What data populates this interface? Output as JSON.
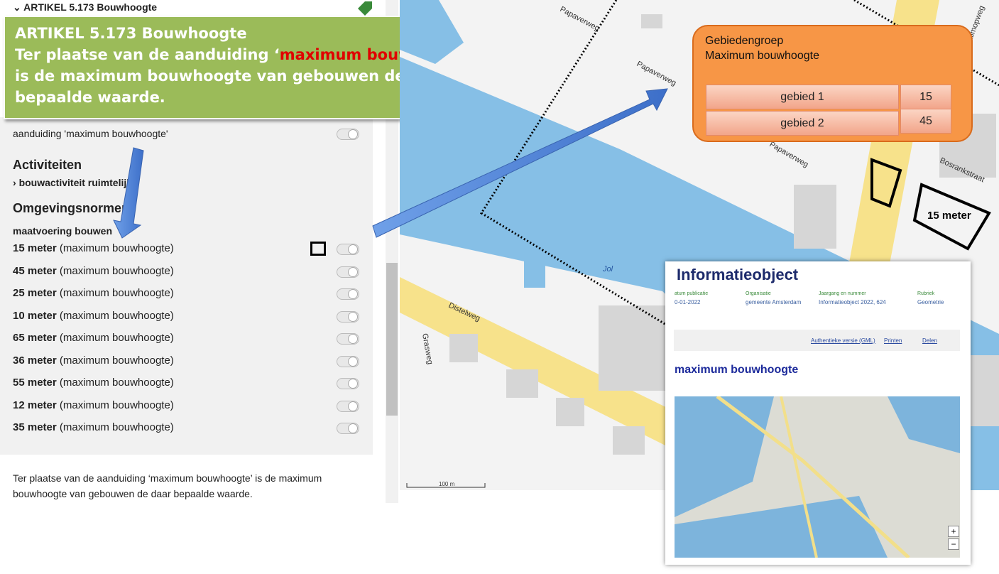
{
  "header": {
    "title": "ARTIKEL 5.173 Bouwhoogte"
  },
  "callout": {
    "title": "ARTIKEL 5.173 Bouwhoogte",
    "text_before": "Ter plaatse van de aanduiding ‘",
    "highlight": "maximum bouwhoogte",
    "text_after": "’ is de maximum bouwhoogte van gebouwen de daar bepaalde waarde."
  },
  "panel": {
    "toggle_label": "aanduiding 'maximum bouwhoogte'",
    "activities_heading": "Activiteiten",
    "activity": "bouwactiviteit ruimtelijk",
    "norms_heading": "Omgevingsnormen",
    "norms_subheading": "maatvoering bouwen",
    "norms": [
      {
        "value": "15 meter",
        "label": "(maximum bouwhoogte)"
      },
      {
        "value": "45 meter",
        "label": "(maximum bouwhoogte)"
      },
      {
        "value": "25 meter",
        "label": "(maximum bouwhoogte)"
      },
      {
        "value": "10 meter",
        "label": "(maximum bouwhoogte)"
      },
      {
        "value": "65 meter",
        "label": "(maximum bouwhoogte)"
      },
      {
        "value": "36 meter",
        "label": "(maximum bouwhoogte)"
      },
      {
        "value": "55 meter",
        "label": "(maximum bouwhoogte)"
      },
      {
        "value": "12 meter",
        "label": "(maximum bouwhoogte)"
      },
      {
        "value": "35 meter",
        "label": "(maximum bouwhoogte)"
      }
    ],
    "description": "Ter plaatse van de aanduiding ‘maximum bouwhoogte’ is de maximum bouwhoogte van gebouwen de daar bepaalde waarde."
  },
  "map": {
    "streets": [
      "Papaverweg",
      "Papaverweg",
      "Papaverweg",
      "Distelweg",
      "Grasweg",
      "Bosrankstraat",
      "Klimopweg",
      "Jol"
    ],
    "area_label": "15 meter",
    "scale": "100 m"
  },
  "legend": {
    "title": "Gebiedengroep",
    "subtitle": "Maximum bouwhoogte",
    "rows": [
      [
        "gebied 1",
        "15"
      ],
      [
        "gebied 2",
        "45"
      ]
    ]
  },
  "info": {
    "title": "Informatieobject",
    "meta": [
      [
        "atum publicatie",
        "0-01-2022"
      ],
      [
        "Organisatie",
        "gemeente Amsterdam"
      ],
      [
        "Jaargang en nummer",
        "Informatieobject 2022, 624"
      ],
      [
        "Rubriek",
        "Geometrie"
      ]
    ],
    "actions": [
      "Authentieke versie (GML)",
      "Printen",
      "Delen"
    ],
    "heading": "maximum bouwhoogte",
    "zoom_in": "+",
    "zoom_out": "−"
  }
}
